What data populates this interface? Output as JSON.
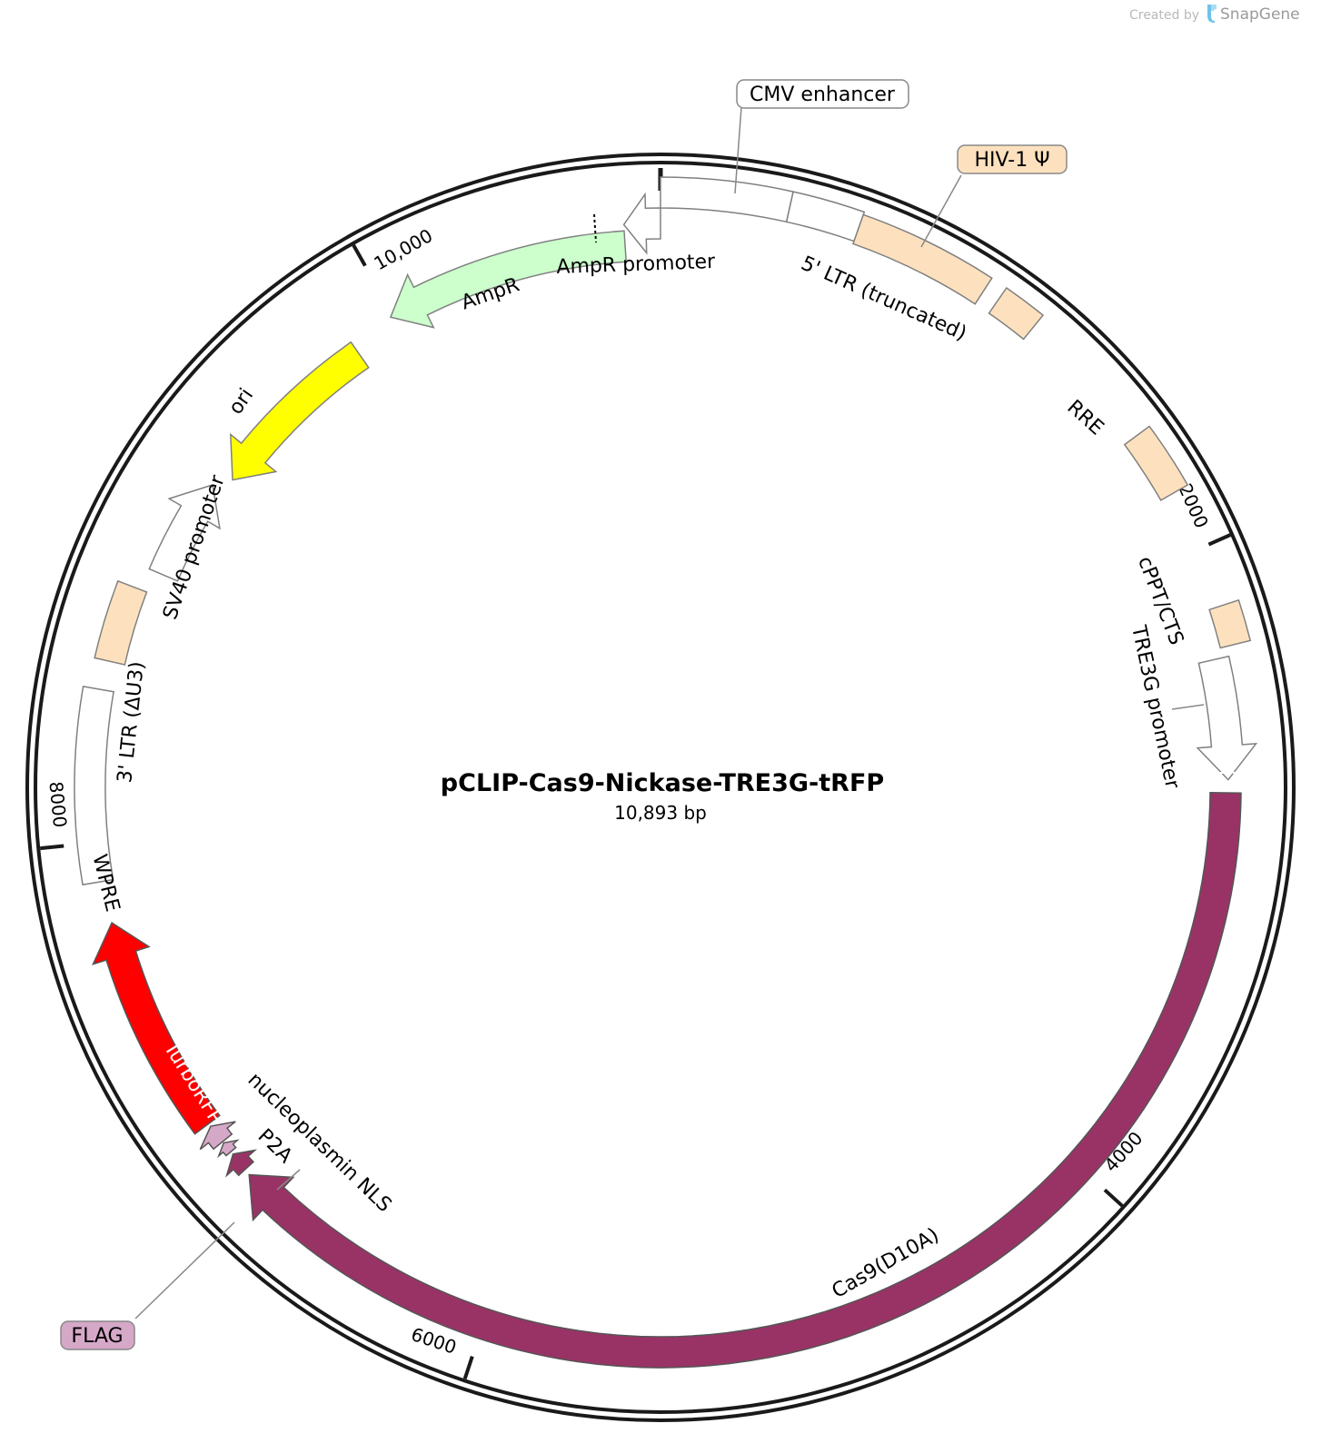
{
  "credit": {
    "prefix": "Created by",
    "brand": "SnapGene"
  },
  "plasmid": {
    "name": "pCLIP-Cas9-Nickase-TRE3G-tRFP",
    "size_label": "10,893 bp",
    "length": 10893
  },
  "ticks": [
    {
      "pos": 2000,
      "label": "2000"
    },
    {
      "pos": 4000,
      "label": "4000"
    },
    {
      "pos": 6000,
      "label": "6000"
    },
    {
      "pos": 8000,
      "label": "8000"
    },
    {
      "pos": 10000,
      "label": "10,000"
    }
  ],
  "features": [
    {
      "id": "cmv-enhancer",
      "label": "CMV enhancer",
      "start": 10893,
      "end": 380,
      "strand": 0,
      "fill": "#ffffff",
      "stroke": "#808080"
    },
    {
      "id": "cmv-promoter-seg",
      "label": "",
      "start": 380,
      "end": 590,
      "strand": 0,
      "fill": "#ffffff",
      "stroke": "#808080"
    },
    {
      "id": "ltr5",
      "label": "5' LTR (truncated)",
      "start": 590,
      "end": 1000,
      "strand": 0,
      "fill": "#fde1be",
      "stroke": "#808080"
    },
    {
      "id": "hiv1-psi",
      "label": "HIV-1 Ψ",
      "start": 1050,
      "end": 1180,
      "strand": 0,
      "fill": "#fde1be",
      "stroke": "#808080"
    },
    {
      "id": "rre",
      "label": "RRE",
      "start": 1620,
      "end": 1820,
      "strand": 0,
      "fill": "#fde1be",
      "stroke": "#808080"
    },
    {
      "id": "cppt-cts",
      "label": "cPPT/CTS",
      "start": 2180,
      "end": 2300,
      "strand": 0,
      "fill": "#fde1be",
      "stroke": "#808080"
    },
    {
      "id": "tre3g-promoter",
      "label": "TRE3G promoter",
      "start": 2330,
      "end": 2700,
      "strand": 1,
      "fill": "#ffffff",
      "stroke": "#808080"
    },
    {
      "id": "cas9",
      "label": "Cas9(D10A)",
      "start": 2740,
      "end": 6860,
      "strand": 1,
      "fill": "#993366",
      "stroke": "#555555"
    },
    {
      "id": "nucleoplasmin-nls",
      "label": "nucleoplasmin NLS",
      "start": 6880,
      "end": 6940,
      "strand": 1,
      "fill": "#993366",
      "stroke": "#555555"
    },
    {
      "id": "flag",
      "label": "FLAG",
      "start": 6950,
      "end": 6985,
      "strand": 1,
      "fill": "#d6a8c8",
      "stroke": "#555555"
    },
    {
      "id": "p2a",
      "label": "P2A",
      "start": 6990,
      "end": 7050,
      "strand": 1,
      "fill": "#d6a8c8",
      "stroke": "#555555"
    },
    {
      "id": "turborfp",
      "label": "TurboRFP",
      "start": 7060,
      "end": 7750,
      "strand": 1,
      "fill": "#ff0000",
      "stroke": "#555555"
    },
    {
      "id": "wpre",
      "label": "WPRE",
      "start": 7880,
      "end": 8470,
      "strand": 0,
      "fill": "#ffffff",
      "stroke": "#808080"
    },
    {
      "id": "ltr3",
      "label": "3' LTR (ΔU3)",
      "start": 8560,
      "end": 8800,
      "strand": 0,
      "fill": "#fde1be",
      "stroke": "#808080"
    },
    {
      "id": "sv40-promoter",
      "label": "SV40 promoter",
      "start": 8870,
      "end": 9200,
      "strand": 1,
      "fill": "#ffffff",
      "stroke": "#808080"
    },
    {
      "id": "ori",
      "label": "ori",
      "start": 9250,
      "end": 9840,
      "strand": -1,
      "fill": "#ffff00",
      "stroke": "#808080"
    },
    {
      "id": "ampr",
      "label": "AmpR",
      "start": 9990,
      "end": 10780,
      "strand": -1,
      "fill": "#ccffcc",
      "stroke": "#808080"
    },
    {
      "id": "ampr-promoter",
      "label": "AmpR promoter",
      "start": 10780,
      "end": 10893,
      "strand": -1,
      "fill": "#ffffff",
      "stroke": "#808080"
    }
  ]
}
